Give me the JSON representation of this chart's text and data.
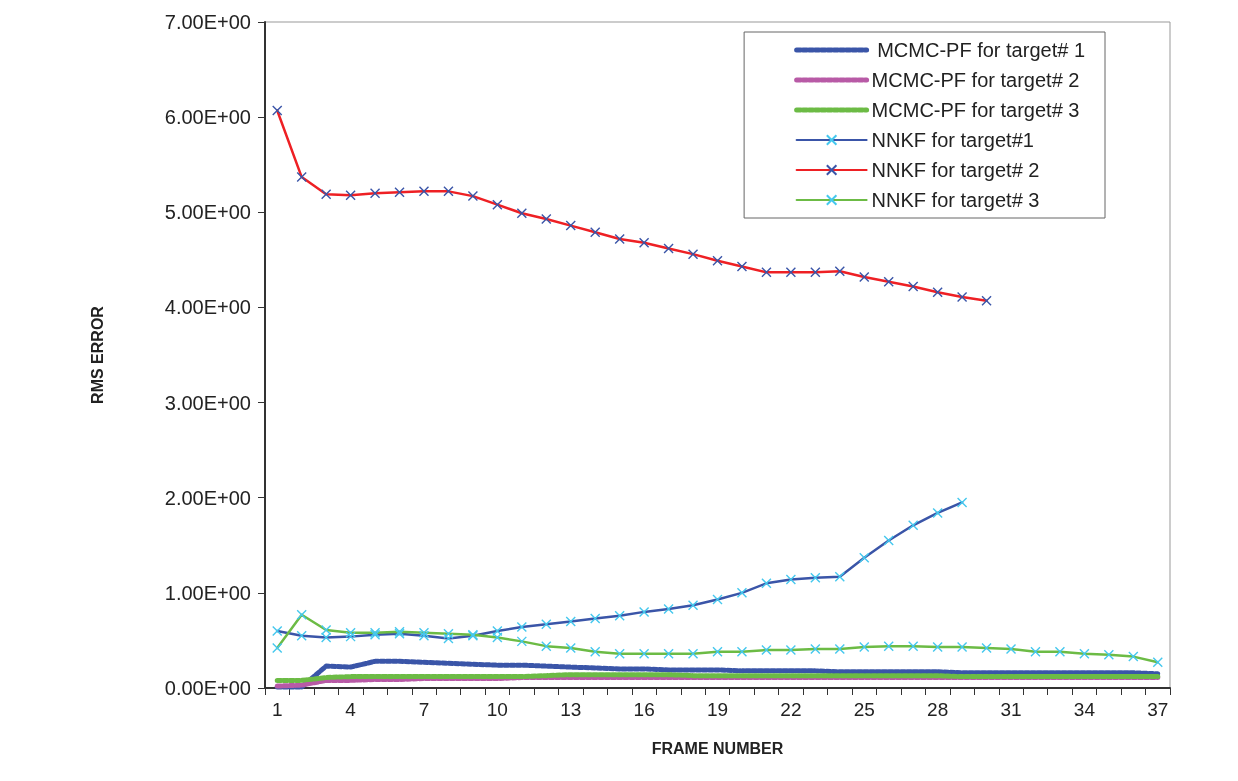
{
  "chart_data": {
    "type": "line",
    "xlabel": "FRAME NUMBER",
    "ylabel": "RMS ERROR",
    "categories": [
      "1",
      null,
      null,
      "4",
      null,
      null,
      "7",
      null,
      null,
      "10",
      null,
      null,
      "13",
      null,
      null,
      "16",
      null,
      null,
      "19",
      null,
      null,
      "22",
      null,
      null,
      "25",
      null,
      null,
      "28",
      null,
      null,
      "31",
      null,
      null,
      "34",
      null,
      null,
      "37"
    ],
    "ylim": [
      0,
      7
    ],
    "yticks": [
      {
        "value": 0,
        "label": "0.00E+00"
      },
      {
        "value": 1,
        "label": "1.00E+00"
      },
      {
        "value": 2,
        "label": "2.00E+00"
      },
      {
        "value": 3,
        "label": "3.00E+00"
      },
      {
        "value": 4,
        "label": "4.00E+00"
      },
      {
        "value": 5,
        "label": "5.00E+00"
      },
      {
        "value": 6,
        "label": "6.00E+00"
      },
      {
        "value": 7,
        "label": "7.00E+00"
      }
    ],
    "grid": false,
    "legend": "top right",
    "series": [
      {
        "name": " MCMC-PF for target# 1",
        "color": "#3a55a8",
        "line_style": "dashed",
        "marker": "none",
        "values": [
          0.01,
          0.01,
          0.23,
          0.22,
          0.28,
          0.28,
          0.27,
          0.26,
          0.25,
          0.24,
          0.24,
          0.23,
          0.22,
          0.21,
          0.2,
          0.2,
          0.19,
          0.19,
          0.19,
          0.18,
          0.18,
          0.18,
          0.18,
          0.17,
          0.17,
          0.17,
          0.17,
          0.17,
          0.16,
          0.16,
          0.16,
          0.16,
          0.16,
          0.16,
          0.16,
          0.16,
          0.15
        ]
      },
      {
        "name": "MCMC-PF for target# 2",
        "color": "#b85aa6",
        "line_style": "dashed",
        "marker": "none",
        "values": [
          0.02,
          0.03,
          0.08,
          0.08,
          0.09,
          0.09,
          0.1,
          0.1,
          0.1,
          0.1,
          0.11,
          0.11,
          0.11,
          0.11,
          0.11,
          0.11,
          0.11,
          0.11,
          0.11,
          0.11,
          0.11,
          0.11,
          0.11,
          0.11,
          0.11,
          0.11,
          0.11,
          0.11,
          0.11,
          0.11,
          0.11,
          0.11,
          0.11,
          0.11,
          0.11,
          0.11,
          0.11
        ]
      },
      {
        "name": "MCMC-PF for target# 3",
        "color": "#6cbb45",
        "line_style": "dashed",
        "marker": "none",
        "values": [
          0.08,
          0.08,
          0.11,
          0.12,
          0.12,
          0.12,
          0.12,
          0.12,
          0.12,
          0.12,
          0.12,
          0.13,
          0.14,
          0.14,
          0.14,
          0.14,
          0.14,
          0.13,
          0.13,
          0.13,
          0.13,
          0.13,
          0.13,
          0.13,
          0.13,
          0.13,
          0.13,
          0.13,
          0.12,
          0.12,
          0.12,
          0.12,
          0.12,
          0.12,
          0.12,
          0.12,
          0.12
        ]
      },
      {
        "name": "NNKF for target#1",
        "color": "#3a55a8",
        "line_style": "solid",
        "marker": "cross",
        "values": [
          0.6,
          0.55,
          0.53,
          0.54,
          0.56,
          0.57,
          0.55,
          0.52,
          0.55,
          0.6,
          0.64,
          0.67,
          0.7,
          0.73,
          0.76,
          0.8,
          0.83,
          0.87,
          0.93,
          1.0,
          1.1,
          1.14,
          1.16,
          1.17,
          1.37,
          1.55,
          1.71,
          1.84,
          1.95,
          null,
          null,
          null,
          null,
          null,
          null,
          null,
          null
        ]
      },
      {
        "name": "NNKF for target# 2",
        "color": "#ee2024",
        "line_style": "solid",
        "marker": "cross",
        "values": [
          6.07,
          5.37,
          5.19,
          5.18,
          5.2,
          5.21,
          5.22,
          5.22,
          5.17,
          5.08,
          4.99,
          4.93,
          4.86,
          4.79,
          4.72,
          4.68,
          4.62,
          4.56,
          4.49,
          4.43,
          4.37,
          4.37,
          4.37,
          4.38,
          4.32,
          4.27,
          4.22,
          4.16,
          4.11,
          4.07,
          null,
          null,
          null,
          null,
          null,
          null,
          null
        ]
      },
      {
        "name": "NNKF for target# 3",
        "color": "#6cbb45",
        "line_style": "solid",
        "marker": "cross",
        "values": [
          0.42,
          0.77,
          0.61,
          0.58,
          0.58,
          0.59,
          0.58,
          0.57,
          0.56,
          0.53,
          0.49,
          0.44,
          0.42,
          0.38,
          0.36,
          0.36,
          0.36,
          0.36,
          0.38,
          0.38,
          0.4,
          0.4,
          0.41,
          0.41,
          0.43,
          0.44,
          0.44,
          0.43,
          0.43,
          0.42,
          0.41,
          0.38,
          0.38,
          0.36,
          0.35,
          0.33,
          0.27
        ]
      }
    ]
  }
}
